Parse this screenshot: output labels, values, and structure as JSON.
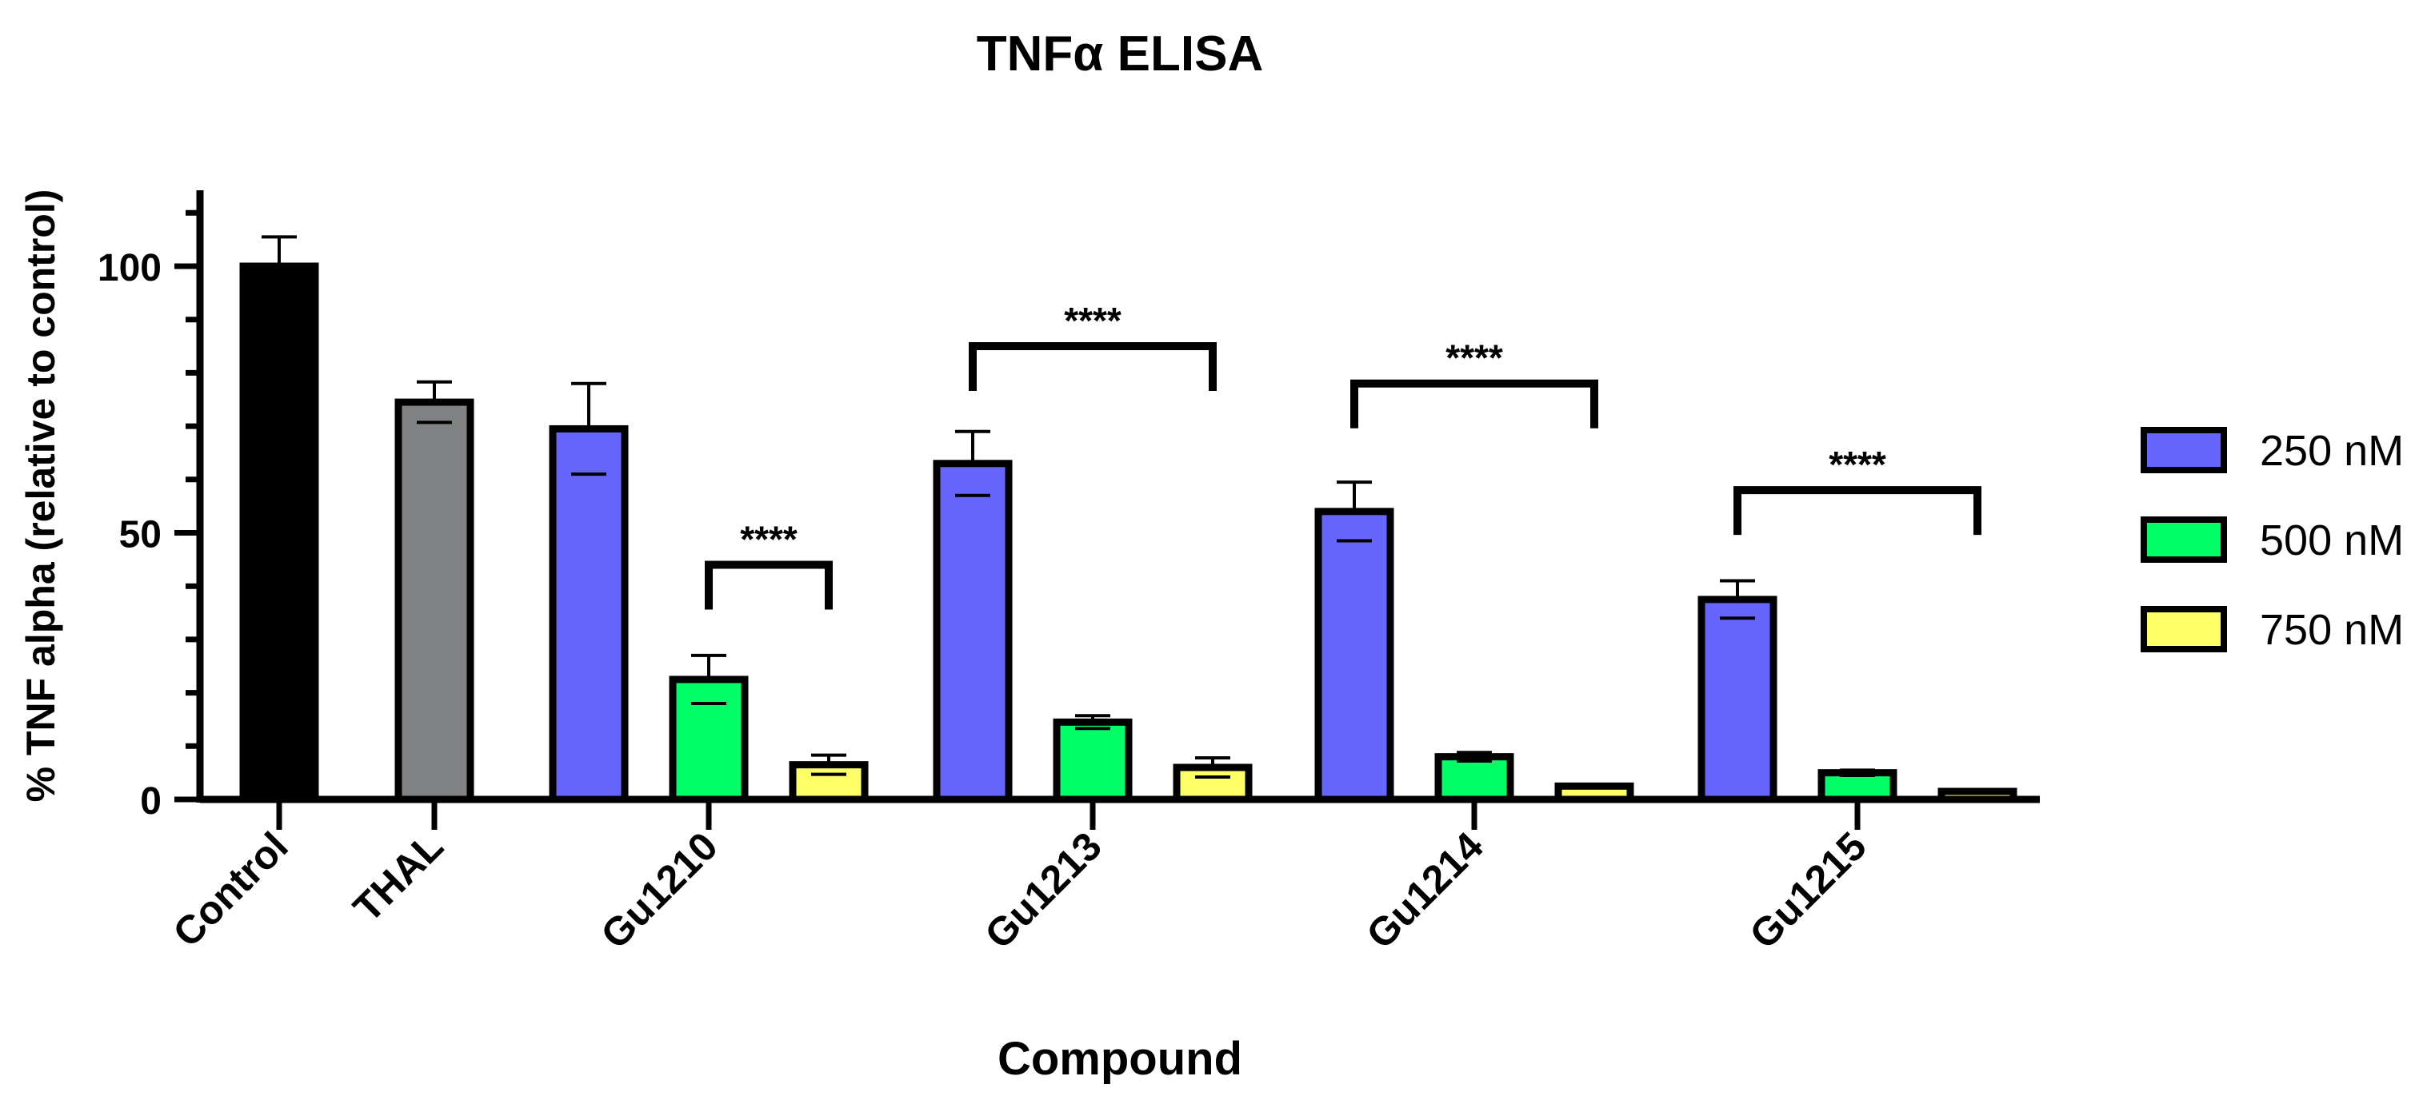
{
  "chart_data": {
    "type": "bar",
    "title": "TNFα ELISA",
    "xlabel": "Compound",
    "ylabel": "% TNF alpha (relative to control)",
    "ylim": [
      0,
      115
    ],
    "yticks": [
      0,
      50,
      100
    ],
    "grid": false,
    "legend_position": "right",
    "legend_title": "",
    "single_bars": [
      {
        "category": "Control",
        "value": 100,
        "error": 5.5,
        "color": "#000000"
      },
      {
        "category": "THAL",
        "value": 74.5,
        "error": 3.8,
        "color": "#808284"
      }
    ],
    "grouped_categories": [
      "Gu1210",
      "Gu1213",
      "Gu1214",
      "Gu1215"
    ],
    "series": [
      {
        "name": "250 nM",
        "color": "#6666ff",
        "values": [
          69.5,
          63,
          54,
          37.5
        ],
        "errors": [
          8.5,
          6,
          5.5,
          3.5
        ]
      },
      {
        "name": "500 nM",
        "color": "#00ff66",
        "values": [
          22.5,
          14.5,
          8,
          5
        ],
        "errors": [
          4.5,
          1.2,
          0.8,
          0.5
        ]
      },
      {
        "name": "750 nM",
        "color": "#ffff66",
        "values": [
          6.5,
          6,
          2.5,
          1.5
        ],
        "errors": [
          1.8,
          1.8,
          0.3,
          0.3
        ]
      }
    ],
    "annotations": [
      {
        "text": "****",
        "group": "Gu1210",
        "from": "500 nM",
        "to": "750 nM",
        "y": 44
      },
      {
        "text": "****",
        "group": "Gu1213",
        "from": "250 nM",
        "to": "750 nM",
        "y": 85
      },
      {
        "text": "****",
        "group": "Gu1214",
        "from": "250 nM",
        "to": "750 nM",
        "y": 78
      },
      {
        "text": "****",
        "group": "Gu1215",
        "from": "250 nM",
        "to": "750 nM",
        "y": 58
      }
    ]
  }
}
